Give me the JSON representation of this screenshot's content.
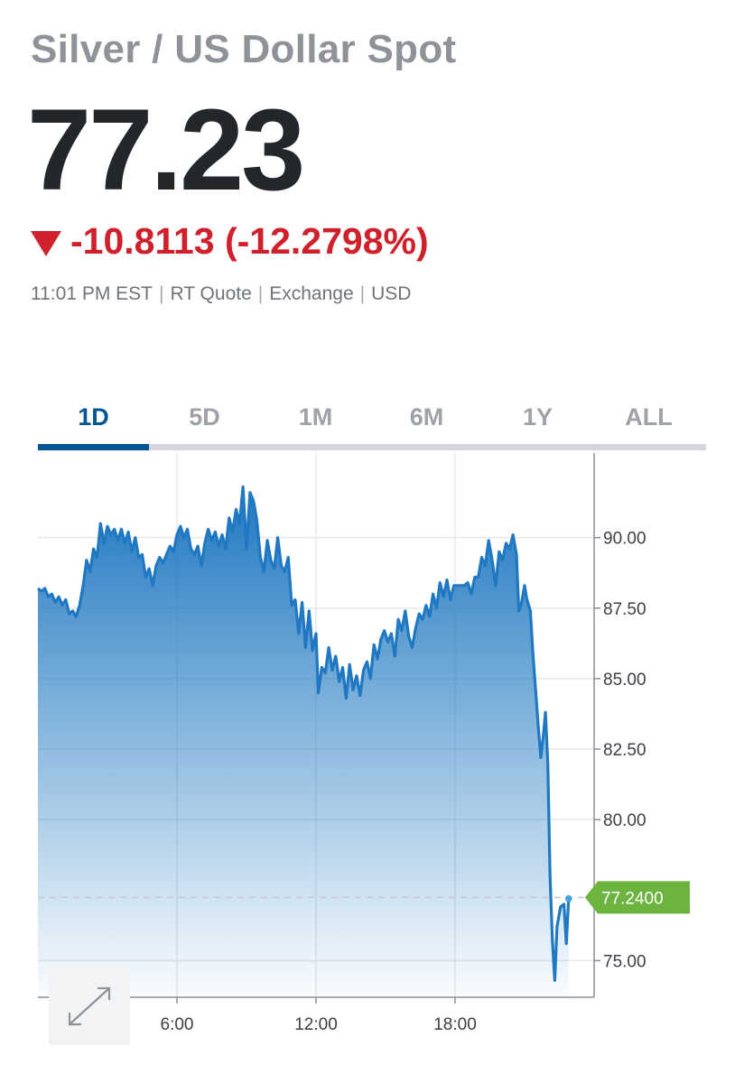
{
  "header": {
    "title": "Silver / US Dollar Spot",
    "price": "77.23",
    "change": "-10.8113 (-12.2798%)",
    "meta": [
      "11:01 PM EST",
      "RT Quote",
      "Exchange",
      "USD"
    ],
    "down_color": "#d0202b"
  },
  "tabs": [
    {
      "label": "1D",
      "active": true
    },
    {
      "label": "5D",
      "active": false
    },
    {
      "label": "1M",
      "active": false
    },
    {
      "label": "6M",
      "active": false
    },
    {
      "label": "1Y",
      "active": false
    },
    {
      "label": "ALL",
      "active": false
    }
  ],
  "expand_icon": "expand-arrows-icon",
  "chart_data": {
    "type": "area",
    "x_unit": "hours",
    "xlim": [
      0,
      24
    ],
    "ylim": [
      73.7,
      93.0
    ],
    "x_ticks": [
      {
        "value": 6,
        "label": "6:00"
      },
      {
        "value": 12,
        "label": "12:00"
      },
      {
        "value": 18,
        "label": "18:00"
      }
    ],
    "y_ticks": [
      {
        "value": 90,
        "label": "90.00"
      },
      {
        "value": 87.5,
        "label": "87.50"
      },
      {
        "value": 85,
        "label": "85.00"
      },
      {
        "value": 82.5,
        "label": "82.50"
      },
      {
        "value": 80,
        "label": "80.00"
      },
      {
        "value": 75,
        "label": "75.00"
      }
    ],
    "last_value": 77.24,
    "last_label": "77.2400",
    "line_color": "#1f78c1",
    "fill_color": "#1f78c1",
    "label_color": "#6db33f",
    "grid": true,
    "series": [
      {
        "values": [
          [
            0.0,
            88.2
          ],
          [
            0.15,
            88.1
          ],
          [
            0.3,
            88.2
          ],
          [
            0.45,
            87.9
          ],
          [
            0.6,
            88.0
          ],
          [
            0.75,
            87.7
          ],
          [
            0.9,
            87.9
          ],
          [
            1.05,
            87.6
          ],
          [
            1.2,
            87.8
          ],
          [
            1.35,
            87.3
          ],
          [
            1.5,
            87.4
          ],
          [
            1.65,
            87.2
          ],
          [
            1.8,
            87.6
          ],
          [
            1.95,
            88.3
          ],
          [
            2.1,
            89.2
          ],
          [
            2.25,
            88.8
          ],
          [
            2.4,
            89.6
          ],
          [
            2.55,
            89.3
          ],
          [
            2.7,
            90.5
          ],
          [
            2.85,
            89.8
          ],
          [
            3.0,
            90.4
          ],
          [
            3.15,
            90.1
          ],
          [
            3.3,
            90.3
          ],
          [
            3.45,
            89.9
          ],
          [
            3.6,
            90.3
          ],
          [
            3.75,
            89.8
          ],
          [
            3.9,
            90.2
          ],
          [
            4.05,
            89.5
          ],
          [
            4.2,
            90.0
          ],
          [
            4.35,
            89.3
          ],
          [
            4.5,
            89.4
          ],
          [
            4.65,
            88.6
          ],
          [
            4.8,
            88.9
          ],
          [
            4.95,
            88.3
          ],
          [
            5.1,
            89.0
          ],
          [
            5.25,
            89.3
          ],
          [
            5.4,
            89.1
          ],
          [
            5.55,
            89.4
          ],
          [
            5.7,
            89.7
          ],
          [
            5.85,
            89.5
          ],
          [
            6.0,
            90.1
          ],
          [
            6.15,
            90.4
          ],
          [
            6.3,
            90.0
          ],
          [
            6.45,
            90.3
          ],
          [
            6.6,
            89.6
          ],
          [
            6.75,
            89.4
          ],
          [
            6.9,
            89.7
          ],
          [
            7.05,
            89.0
          ],
          [
            7.2,
            89.8
          ],
          [
            7.35,
            90.3
          ],
          [
            7.5,
            89.9
          ],
          [
            7.65,
            90.2
          ],
          [
            7.8,
            89.7
          ],
          [
            7.95,
            90.1
          ],
          [
            8.1,
            89.6
          ],
          [
            8.25,
            90.7
          ],
          [
            8.4,
            90.2
          ],
          [
            8.55,
            91.0
          ],
          [
            8.7,
            90.5
          ],
          [
            8.85,
            91.8
          ],
          [
            9.0,
            89.6
          ],
          [
            9.15,
            91.6
          ],
          [
            9.3,
            91.3
          ],
          [
            9.45,
            90.6
          ],
          [
            9.6,
            89.3
          ],
          [
            9.75,
            88.8
          ],
          [
            9.9,
            89.9
          ],
          [
            10.05,
            89.2
          ],
          [
            10.2,
            88.9
          ],
          [
            10.35,
            90.0
          ],
          [
            10.5,
            89.0
          ],
          [
            10.65,
            88.8
          ],
          [
            10.8,
            89.3
          ],
          [
            10.95,
            87.6
          ],
          [
            11.1,
            87.8
          ],
          [
            11.25,
            86.6
          ],
          [
            11.4,
            87.7
          ],
          [
            11.55,
            86.1
          ],
          [
            11.7,
            87.4
          ],
          [
            11.85,
            86.0
          ],
          [
            12.0,
            86.6
          ],
          [
            12.1,
            84.5
          ],
          [
            12.25,
            85.4
          ],
          [
            12.4,
            85.2
          ],
          [
            12.55,
            86.1
          ],
          [
            12.7,
            85.3
          ],
          [
            12.85,
            85.8
          ],
          [
            13.0,
            84.9
          ],
          [
            13.15,
            85.4
          ],
          [
            13.3,
            84.3
          ],
          [
            13.45,
            85.5
          ],
          [
            13.6,
            84.6
          ],
          [
            13.75,
            85.1
          ],
          [
            13.9,
            84.4
          ],
          [
            14.05,
            85.3
          ],
          [
            14.2,
            85.6
          ],
          [
            14.35,
            85.0
          ],
          [
            14.5,
            86.2
          ],
          [
            14.65,
            85.7
          ],
          [
            14.8,
            86.4
          ],
          [
            14.95,
            86.7
          ],
          [
            15.1,
            86.3
          ],
          [
            15.25,
            86.6
          ],
          [
            15.4,
            85.8
          ],
          [
            15.55,
            87.1
          ],
          [
            15.7,
            86.7
          ],
          [
            15.85,
            87.4
          ],
          [
            16.0,
            86.5
          ],
          [
            16.15,
            86.1
          ],
          [
            16.3,
            86.8
          ],
          [
            16.45,
            87.3
          ],
          [
            16.6,
            87.1
          ],
          [
            16.75,
            87.6
          ],
          [
            16.9,
            87.2
          ],
          [
            17.05,
            88.0
          ],
          [
            17.2,
            87.5
          ],
          [
            17.35,
            88.4
          ],
          [
            17.5,
            87.9
          ],
          [
            17.65,
            88.5
          ],
          [
            17.8,
            87.8
          ],
          [
            17.95,
            88.3
          ],
          [
            18.1,
            88.3
          ],
          [
            18.25,
            88.3
          ],
          [
            18.4,
            88.3
          ],
          [
            18.55,
            88.4
          ],
          [
            18.7,
            88.0
          ],
          [
            18.85,
            88.6
          ],
          [
            19.0,
            88.6
          ],
          [
            19.15,
            89.3
          ],
          [
            19.3,
            89.0
          ],
          [
            19.45,
            89.9
          ],
          [
            19.6,
            89.2
          ],
          [
            19.75,
            88.3
          ],
          [
            19.9,
            89.5
          ],
          [
            20.05,
            89.2
          ],
          [
            20.2,
            89.8
          ],
          [
            20.35,
            89.6
          ],
          [
            20.5,
            90.1
          ],
          [
            20.65,
            89.4
          ],
          [
            20.75,
            87.4
          ],
          [
            20.85,
            87.6
          ],
          [
            21.0,
            88.3
          ],
          [
            21.1,
            87.8
          ],
          [
            21.25,
            87.4
          ],
          [
            21.35,
            86.0
          ],
          [
            21.45,
            84.9
          ],
          [
            21.6,
            83.2
          ],
          [
            21.7,
            82.2
          ],
          [
            21.8,
            82.9
          ],
          [
            21.9,
            83.8
          ],
          [
            22.0,
            82.0
          ],
          [
            22.1,
            78.0
          ],
          [
            22.2,
            75.7
          ],
          [
            22.3,
            74.3
          ],
          [
            22.4,
            76.2
          ],
          [
            22.55,
            76.9
          ],
          [
            22.7,
            77.0
          ],
          [
            22.8,
            75.6
          ],
          [
            22.9,
            77.2
          ]
        ]
      }
    ]
  }
}
